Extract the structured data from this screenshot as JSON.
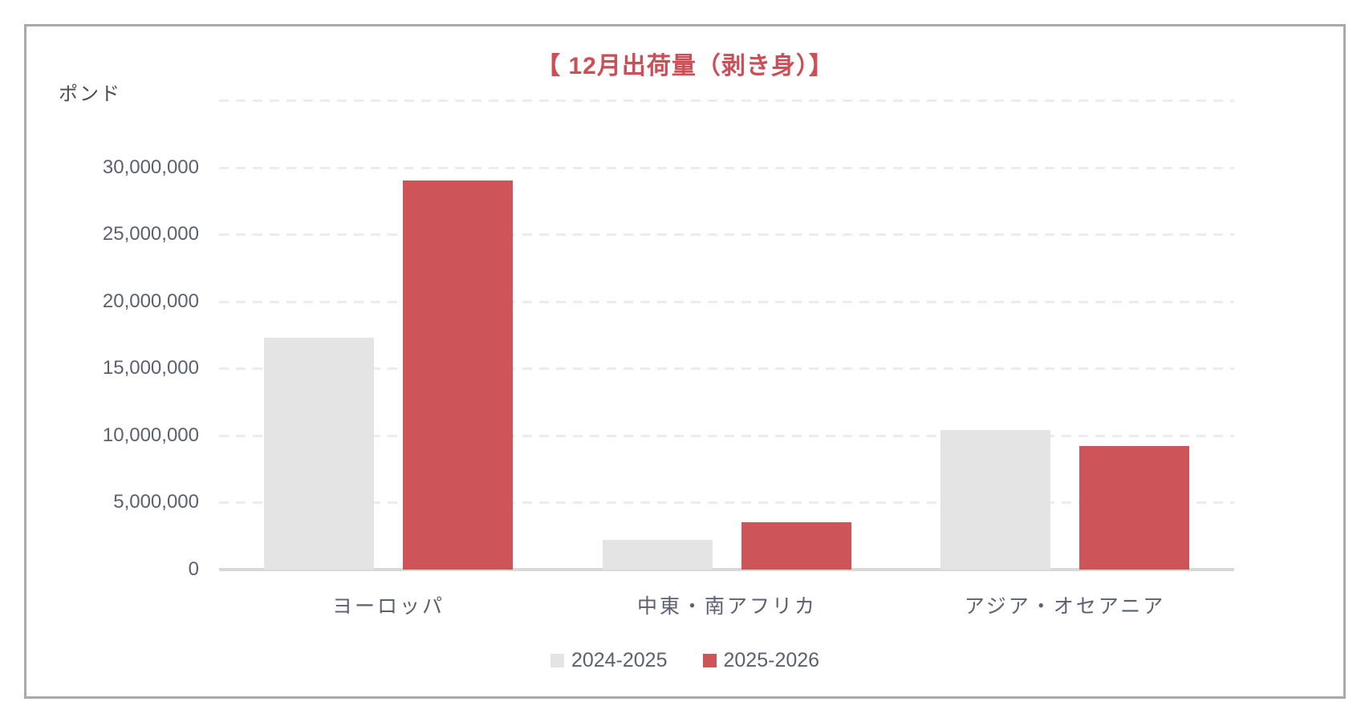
{
  "chart_data": {
    "type": "bar",
    "title": "【 12月出荷量（剥き身）】",
    "unit_label": "ポンド",
    "categories": [
      "ヨーロッパ",
      "中東・南アフリカ",
      "アジア・オセアニア"
    ],
    "series": [
      {
        "name": "2024-2025",
        "color": "#e4e4e4",
        "values": [
          17300000,
          2200000,
          10400000
        ]
      },
      {
        "name": "2025-2026",
        "color": "#cd5559",
        "values": [
          29000000,
          3500000,
          9200000
        ]
      }
    ],
    "xlabel": "",
    "ylabel": "ポンド",
    "ylim": [
      0,
      35000000
    ],
    "ytick_step": 5000000,
    "ytick_labels": [
      "0",
      "5,000,000",
      "10,000,000",
      "15,000,000",
      "20,000,000",
      "25,000,000",
      "30,000,000"
    ],
    "grid": "horizontal-dashed",
    "legend_position": "bottom-center",
    "colors": {
      "title": "#ca4f57",
      "series_2024_2025": "#e4e4e4",
      "series_2025_2026": "#cd5559",
      "axis_text": "#5a6170",
      "gridline": "#ececec",
      "axis_line": "#d8d8d8",
      "frame_border": "#a9a9a9",
      "background": "#ffffff"
    }
  }
}
